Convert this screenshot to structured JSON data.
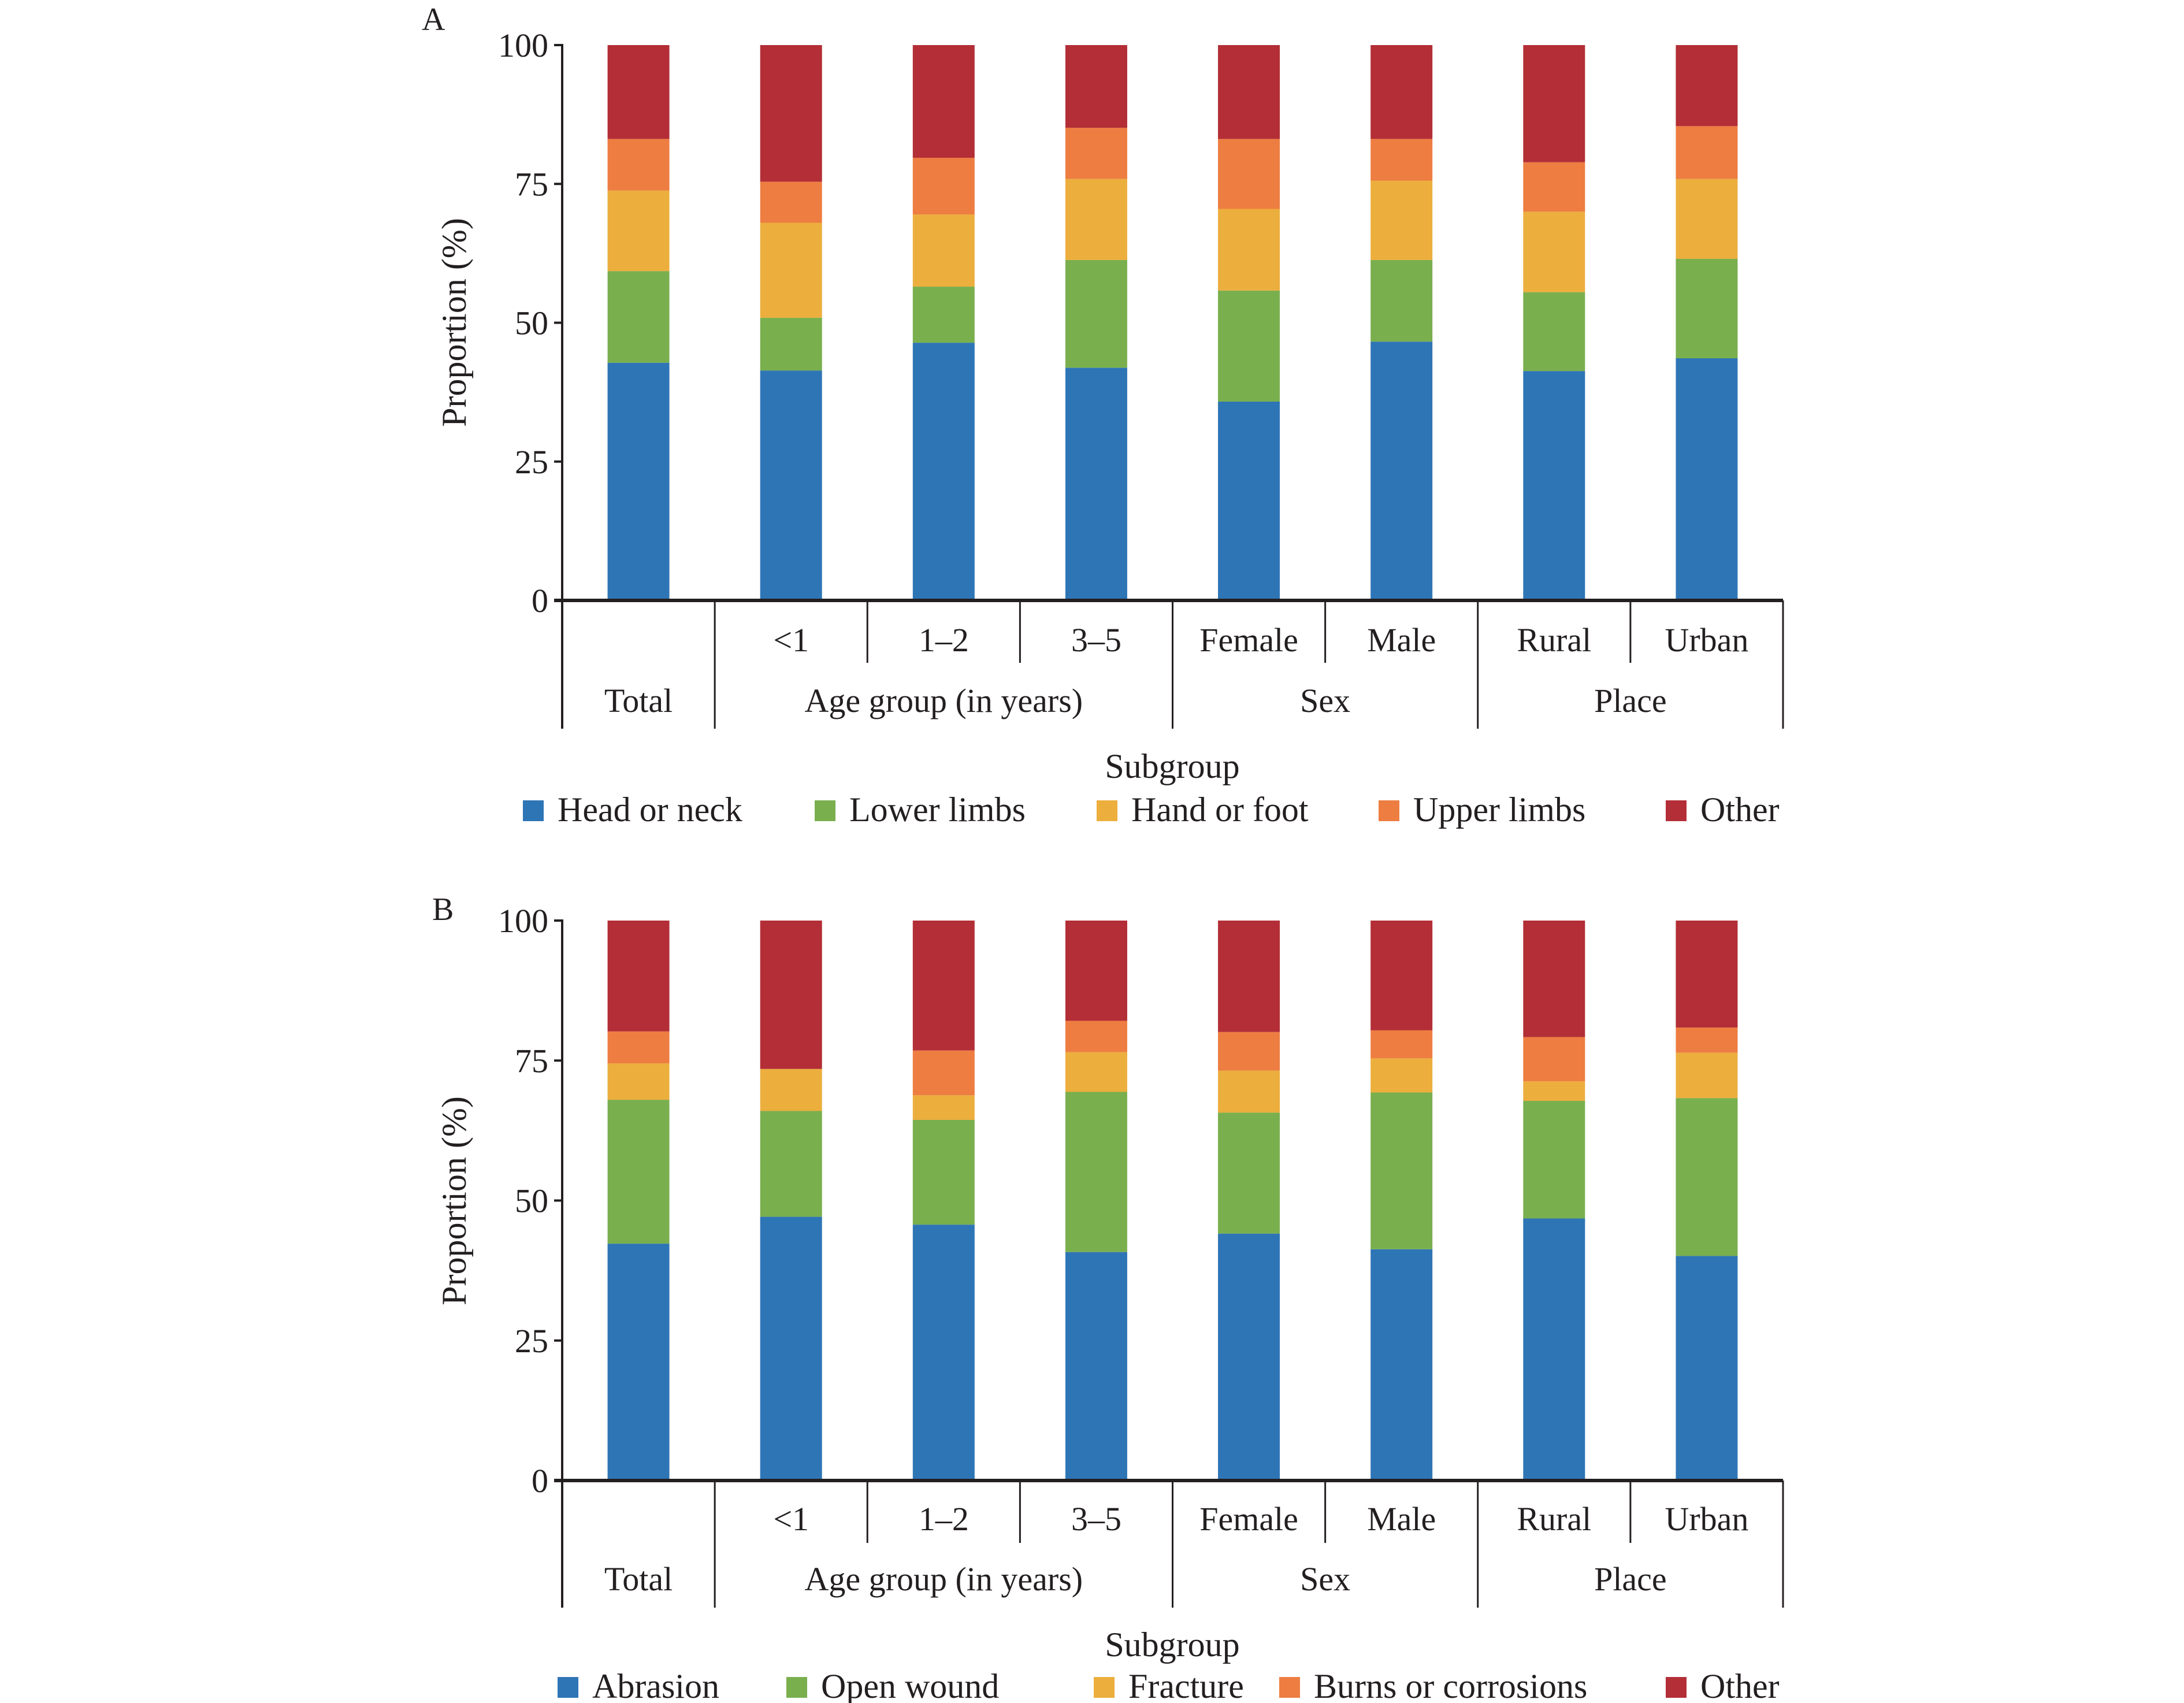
{
  "chart_data": [
    {
      "panel": "A",
      "type": "bar",
      "stacked": true,
      "ylabel": "Proportion (%)",
      "xlabel": "Subgroup",
      "ylim": [
        0,
        100
      ],
      "yticks": [
        0,
        25,
        50,
        75,
        100
      ],
      "categories": [
        "Total",
        "<1",
        "1–2",
        "3–5",
        "Female",
        "Male",
        "Rural",
        "Urban"
      ],
      "groups": [
        {
          "label": "Total",
          "categories": [
            "Total"
          ],
          "show_sub": false
        },
        {
          "label": "Age group (in years)",
          "categories": [
            "<1",
            "1–2",
            "3–5"
          ],
          "show_sub": true
        },
        {
          "label": "Sex",
          "categories": [
            "Female",
            "Male"
          ],
          "show_sub": true
        },
        {
          "label": "Place",
          "categories": [
            "Rural",
            "Urban"
          ],
          "show_sub": true
        }
      ],
      "legend_position": "bottom",
      "series": [
        {
          "name": "Head or neck",
          "color": "#2e75b6",
          "values": [
            42.8,
            41.4,
            46.4,
            41.9,
            35.8,
            46.6,
            41.3,
            43.6
          ]
        },
        {
          "name": "Lower limbs",
          "color": "#7aaf4e",
          "values": [
            16.5,
            9.5,
            10.1,
            19.4,
            20.0,
            14.7,
            14.2,
            17.9
          ]
        },
        {
          "name": "Hand or foot",
          "color": "#ecae3d",
          "values": [
            14.5,
            17.1,
            13.0,
            14.6,
            14.7,
            14.3,
            14.5,
            14.4
          ]
        },
        {
          "name": "Upper limbs",
          "color": "#ed7d41",
          "values": [
            9.3,
            7.4,
            10.2,
            9.2,
            12.6,
            7.5,
            8.9,
            9.5
          ]
        },
        {
          "name": "Other",
          "color": "#b32e36",
          "values": [
            16.9,
            24.6,
            20.3,
            14.9,
            16.9,
            16.9,
            21.1,
            14.6
          ]
        }
      ]
    },
    {
      "panel": "B",
      "type": "bar",
      "stacked": true,
      "ylabel": "Proportion (%)",
      "xlabel": "Subgroup",
      "ylim": [
        0,
        100
      ],
      "yticks": [
        0,
        25,
        50,
        75,
        100
      ],
      "categories": [
        "Total",
        "<1",
        "1–2",
        "3–5",
        "Female",
        "Male",
        "Rural",
        "Urban"
      ],
      "groups": [
        {
          "label": "Total",
          "categories": [
            "Total"
          ],
          "show_sub": false
        },
        {
          "label": "Age group (in years)",
          "categories": [
            "<1",
            "1–2",
            "3–5"
          ],
          "show_sub": true
        },
        {
          "label": "Sex",
          "categories": [
            "Female",
            "Male"
          ],
          "show_sub": true
        },
        {
          "label": "Place",
          "categories": [
            "Rural",
            "Urban"
          ],
          "show_sub": true
        }
      ],
      "legend_position": "bottom",
      "series": [
        {
          "name": "Abrasion",
          "color": "#2e75b6",
          "values": [
            42.3,
            47.1,
            45.7,
            40.8,
            44.1,
            41.3,
            46.8,
            40.1
          ]
        },
        {
          "name": "Open wound",
          "color": "#7aaf4e",
          "values": [
            25.7,
            18.9,
            18.7,
            28.6,
            21.6,
            28.0,
            21.0,
            28.2
          ]
        },
        {
          "name": "Fracture",
          "color": "#ecae3d",
          "values": [
            6.5,
            7.5,
            4.4,
            7.1,
            7.5,
            6.1,
            3.5,
            8.1
          ]
        },
        {
          "name": "Burns or corrosions",
          "color": "#ed7d41",
          "values": [
            5.7,
            0.0,
            8.0,
            5.6,
            6.9,
            5.0,
            7.9,
            4.5
          ]
        },
        {
          "name": "Other",
          "color": "#b32e36",
          "values": [
            19.8,
            26.5,
            23.2,
            17.9,
            19.9,
            19.6,
            20.8,
            19.1
          ]
        }
      ]
    }
  ]
}
